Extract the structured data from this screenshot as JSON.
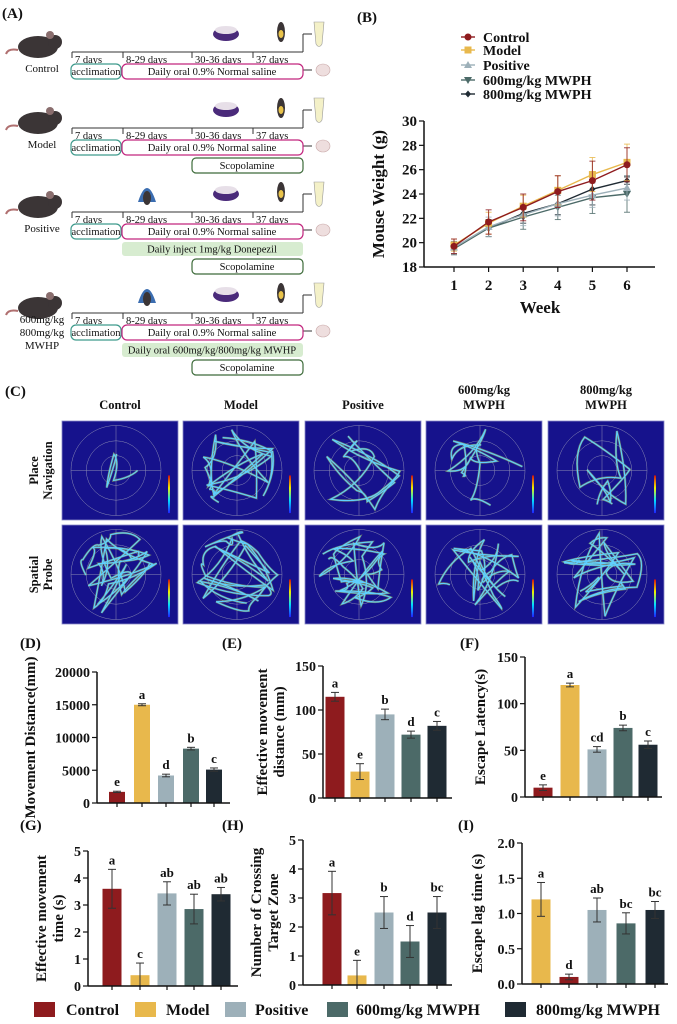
{
  "panel_labels": {
    "A": "(A)",
    "B": "(B)",
    "C": "(C)",
    "D": "(D)",
    "E": "(E)",
    "F": "(F)",
    "G": "(G)",
    "H": "(H)",
    "I": "(I)"
  },
  "colors": {
    "Control": "#8e1b1e",
    "Model": "#e8b84c",
    "Positive": "#9db0b9",
    "600mg/kg MWPH": "#4c6a68",
    "800mg/kg MWPH": "#1f2a33",
    "acclimation_border": "#3f9a8c",
    "saline_border": "#c2267e",
    "scopolamine_border": "#3d6b3a",
    "treatment_fill": "#d7ecd0",
    "maze_bg": "#16128c"
  },
  "panel_a": {
    "days": [
      "7 days",
      "8-29 days",
      "30-36 days",
      "37 days"
    ],
    "groups": [
      {
        "label": [
          "Control"
        ],
        "acclimation": "acclimation",
        "main": "Daily oral 0.9% Normal saline",
        "treatment": "",
        "scopolamine": "",
        "icon": "bowl-icon"
      },
      {
        "label": [
          "Model"
        ],
        "acclimation": "acclimation",
        "main": "Daily oral 0.9% Normal saline",
        "treatment": "",
        "scopolamine": "Scopolamine",
        "icon": "bowl-icon"
      },
      {
        "label": [
          "Positive"
        ],
        "acclimation": "acclimation",
        "main": "Daily oral 0.9% Normal saline",
        "treatment": "Daily inject 1mg/kg Donepezil",
        "scopolamine": "Scopolamine",
        "icon": "injection-icon"
      },
      {
        "label": [
          "600mg/kg",
          "800mg/kg",
          "MWHP"
        ],
        "acclimation": "acclimation",
        "main": "Daily oral 0.9% Normal saline",
        "treatment": "Daily oral 600mg/kg/800mg/kg MWHP",
        "scopolamine": "Scopolamine",
        "icon": "gavage-icon"
      }
    ]
  },
  "panel_c": {
    "columns": [
      [
        "Control"
      ],
      [
        "Model"
      ],
      [
        "Positive"
      ],
      [
        "600mg/kg",
        "MWPH"
      ],
      [
        "800mg/kg",
        "MWPH"
      ]
    ],
    "rows": [
      [
        "Place",
        "Navigation"
      ],
      [
        "Spatial",
        "Probe"
      ]
    ]
  },
  "legend": [
    "Control",
    "Model",
    "Positive",
    "600mg/kg MWPH",
    "800mg/kg MWPH"
  ],
  "chart_data": [
    {
      "panel": "B",
      "type": "line",
      "xlabel": "Week",
      "ylabel": "Mouse Weight (g)",
      "x": [
        1,
        2,
        3,
        4,
        5,
        6
      ],
      "ylim": [
        18,
        30
      ],
      "yticks": [
        18,
        20,
        22,
        24,
        26,
        28,
        30
      ],
      "legend_position": "top",
      "series": [
        {
          "name": "Control",
          "marker": "circle",
          "values": [
            19.7,
            21.7,
            22.9,
            24.2,
            25.1,
            26.4
          ],
          "err": [
            0.6,
            1.0,
            1.1,
            1.3,
            1.6,
            1.4
          ]
        },
        {
          "name": "Model",
          "marker": "square",
          "values": [
            19.8,
            21.6,
            23.0,
            24.3,
            25.6,
            26.6
          ],
          "err": [
            0.5,
            0.9,
            0.9,
            1.2,
            1.4,
            1.5
          ]
        },
        {
          "name": "Positive",
          "marker": "triangle-up",
          "values": [
            19.6,
            21.3,
            22.3,
            23.2,
            23.9,
            24.5
          ],
          "err": [
            0.5,
            0.8,
            0.9,
            1.0,
            1.0,
            1.0
          ]
        },
        {
          "name": "600mg/kg MWPH",
          "marker": "triangle-down",
          "values": [
            19.5,
            21.2,
            22.1,
            22.9,
            23.7,
            24.0
          ],
          "err": [
            0.5,
            0.7,
            1.0,
            1.0,
            1.3,
            1.5
          ]
        },
        {
          "name": "800mg/kg MWPH",
          "marker": "diamond",
          "values": [
            19.6,
            21.2,
            22.4,
            23.2,
            24.4,
            25.1
          ],
          "err": [
            0.5,
            0.7,
            0.8,
            0.9,
            1.3,
            0.3
          ]
        }
      ]
    },
    {
      "panel": "D",
      "type": "bar",
      "ylabel": [
        "Movement Distance(mm)"
      ],
      "categories": [
        "Control",
        "Model",
        "Positive",
        "600mg/kg MWPH",
        "800mg/kg MWPH"
      ],
      "values": [
        1700,
        15000,
        4200,
        8300,
        5100
      ],
      "err": [
        100,
        150,
        200,
        200,
        250
      ],
      "letters": [
        "e",
        "a",
        "d",
        "b",
        "c"
      ],
      "ylim": [
        0,
        20000
      ],
      "yticks": [
        0,
        5000,
        10000,
        15000,
        20000
      ]
    },
    {
      "panel": "E",
      "type": "bar",
      "ylabel": [
        "Effective movement",
        "distance (mm)"
      ],
      "categories": [
        "Control",
        "Model",
        "Positive",
        "600mg/kg MWPH",
        "800mg/kg MWPH"
      ],
      "values": [
        115,
        30,
        95,
        72,
        82
      ],
      "err": [
        5,
        9,
        6,
        4,
        5
      ],
      "letters": [
        "a",
        "e",
        "b",
        "d",
        "c"
      ],
      "ylim": [
        0,
        150
      ],
      "yticks": [
        0,
        50,
        100,
        150
      ]
    },
    {
      "panel": "F",
      "type": "bar",
      "ylabel": [
        "Escape Latency(s)"
      ],
      "categories": [
        "Control",
        "Model",
        "Positive",
        "600mg/kg MWPH",
        "800mg/kg MWPH"
      ],
      "values": [
        10,
        120,
        51,
        74,
        56
      ],
      "err": [
        3,
        2,
        3,
        3,
        4
      ],
      "letters": [
        "e",
        "a",
        "cd",
        "b",
        "c"
      ],
      "ylim": [
        0,
        150
      ],
      "yticks": [
        0,
        50,
        100,
        150
      ]
    },
    {
      "panel": "G",
      "type": "bar",
      "ylabel": [
        "Effective movement",
        "time (s)"
      ],
      "categories": [
        "Control",
        "Model",
        "Positive",
        "600mg/kg MWPH",
        "800mg/kg MWPH"
      ],
      "values": [
        3.6,
        0.4,
        3.43,
        2.85,
        3.4
      ],
      "err": [
        0.72,
        0.45,
        0.43,
        0.55,
        0.25
      ],
      "letters": [
        "a",
        "c",
        "ab",
        "ab",
        "ab"
      ],
      "ylim": [
        0,
        5
      ],
      "yticks": [
        0,
        1,
        2,
        3,
        4,
        5
      ]
    },
    {
      "panel": "H",
      "type": "bar",
      "ylabel": [
        "Number of Crossing",
        "Target Zone"
      ],
      "categories": [
        "Control",
        "Model",
        "Positive",
        "600mg/kg MWPH",
        "800mg/kg MWPH"
      ],
      "values": [
        3.17,
        0.33,
        2.5,
        1.5,
        2.5
      ],
      "err": [
        0.75,
        0.52,
        0.55,
        0.55,
        0.55
      ],
      "letters": [
        "a",
        "e",
        "b",
        "d",
        "bc"
      ],
      "ylim": [
        0,
        5
      ],
      "yticks": [
        0,
        1,
        2,
        3,
        4,
        5
      ]
    },
    {
      "panel": "I",
      "type": "bar",
      "ylabel": [
        "Escape lag time (s)"
      ],
      "categories": [
        "Control",
        "Model",
        "Positive",
        "600mg/kg MWPH",
        "800mg/kg MWPH"
      ],
      "bar_colors": [
        "#e8b84c",
        "#8e1b1e",
        "#9db0b9",
        "#4c6a68",
        "#1f2a33"
      ],
      "values": [
        1.2,
        0.1,
        1.05,
        0.86,
        1.05
      ],
      "err": [
        0.24,
        0.04,
        0.17,
        0.15,
        0.12
      ],
      "letters": [
        "a",
        "d",
        "ab",
        "bc",
        "bc"
      ],
      "ylim": [
        0,
        2.0
      ],
      "yticks": [
        0.0,
        0.5,
        1.0,
        1.5,
        2.0
      ]
    }
  ]
}
